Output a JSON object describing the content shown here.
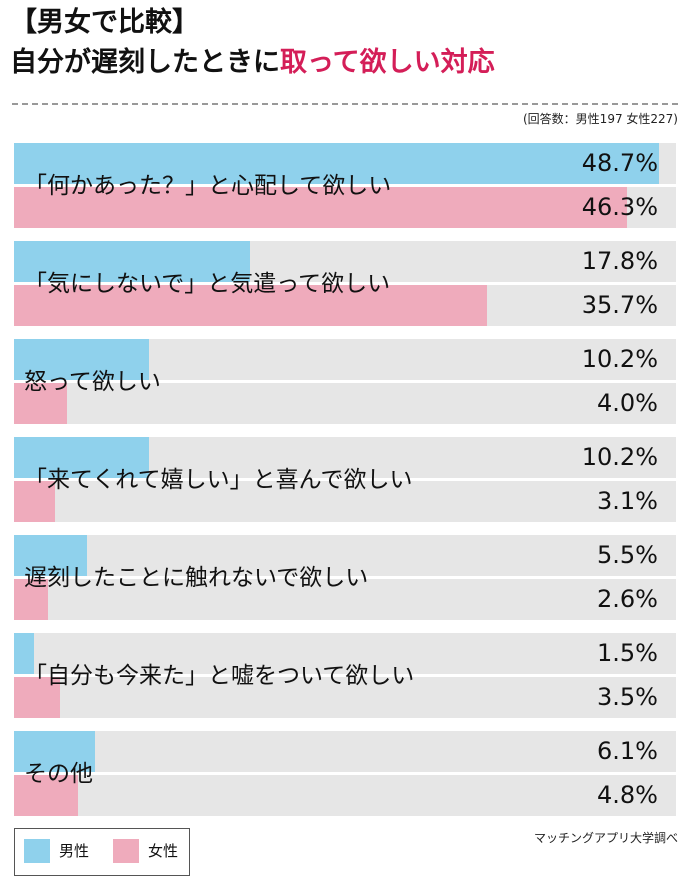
{
  "title_line1": "【男女で比較】",
  "title_line2_plain": "自分が遅刻したときに",
  "title_line2_accent": "取って欲しい対応",
  "note": "(回答数：男性197 女性227)",
  "source": "マッチングアプリ大学調べ",
  "legend": {
    "male": "男性",
    "female": "女性"
  },
  "colors": {
    "male": "#8fd1ec",
    "female": "#efabbc",
    "track": "#e6e6e6",
    "accent": "#d41e58"
  },
  "chart_data": {
    "type": "bar",
    "orientation": "horizontal",
    "scale_max": 50,
    "categories": [
      "「何かあった？」と心配して欲しい",
      "「気にしないで」と気遣って欲しい",
      "怒って欲しい",
      "「来てくれて嬉しい」と喜んで欲しい",
      "遅刻したことに触れないで欲しい",
      "「自分も今来た」と嘘をついて欲しい",
      "その他"
    ],
    "series": [
      {
        "name": "男性",
        "values": [
          48.7,
          17.8,
          10.2,
          10.2,
          5.5,
          1.5,
          6.1
        ],
        "labels": [
          "48.7%",
          "17.8%",
          "10.2%",
          "10.2%",
          "5.5%",
          "1.5%",
          "6.1%"
        ]
      },
      {
        "name": "女性",
        "values": [
          46.3,
          35.7,
          4.0,
          3.1,
          2.6,
          3.5,
          4.8
        ],
        "labels": [
          "46.3%",
          "35.7%",
          "4.0%",
          "3.1%",
          "2.6%",
          "3.5%",
          "4.8%"
        ]
      }
    ]
  }
}
